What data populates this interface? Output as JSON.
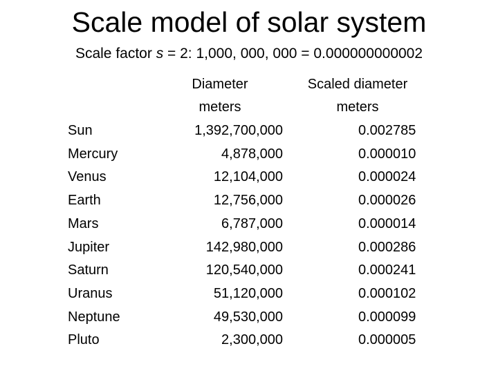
{
  "title": "Scale model of solar system",
  "subtitle": {
    "prefix": "Scale factor",
    "variable": "s",
    "rest": "= 2: 1,000, 000, 000 = 0.000000000002"
  },
  "table": {
    "headers": [
      [
        "Diameter",
        "meters"
      ],
      [
        "Scaled diameter",
        "meters"
      ]
    ],
    "rows": [
      [
        "Sun",
        "1,392,700,000",
        "0.002785"
      ],
      [
        "Mercury",
        "4,878,000",
        "0.000010"
      ],
      [
        "Venus",
        "12,104,000",
        "0.000024"
      ],
      [
        "Earth",
        "12,756,000",
        "0.000026"
      ],
      [
        "Mars",
        "6,787,000",
        "0.000014"
      ],
      [
        "Jupiter",
        "142,980,000",
        "0.000286"
      ],
      [
        "Saturn",
        "120,540,000",
        "0.000241"
      ],
      [
        "Uranus",
        "51,120,000",
        "0.000102"
      ],
      [
        "Neptune",
        "49,530,000",
        "0.000099"
      ],
      [
        "Pluto",
        "2,300,000",
        "0.000005"
      ]
    ]
  }
}
